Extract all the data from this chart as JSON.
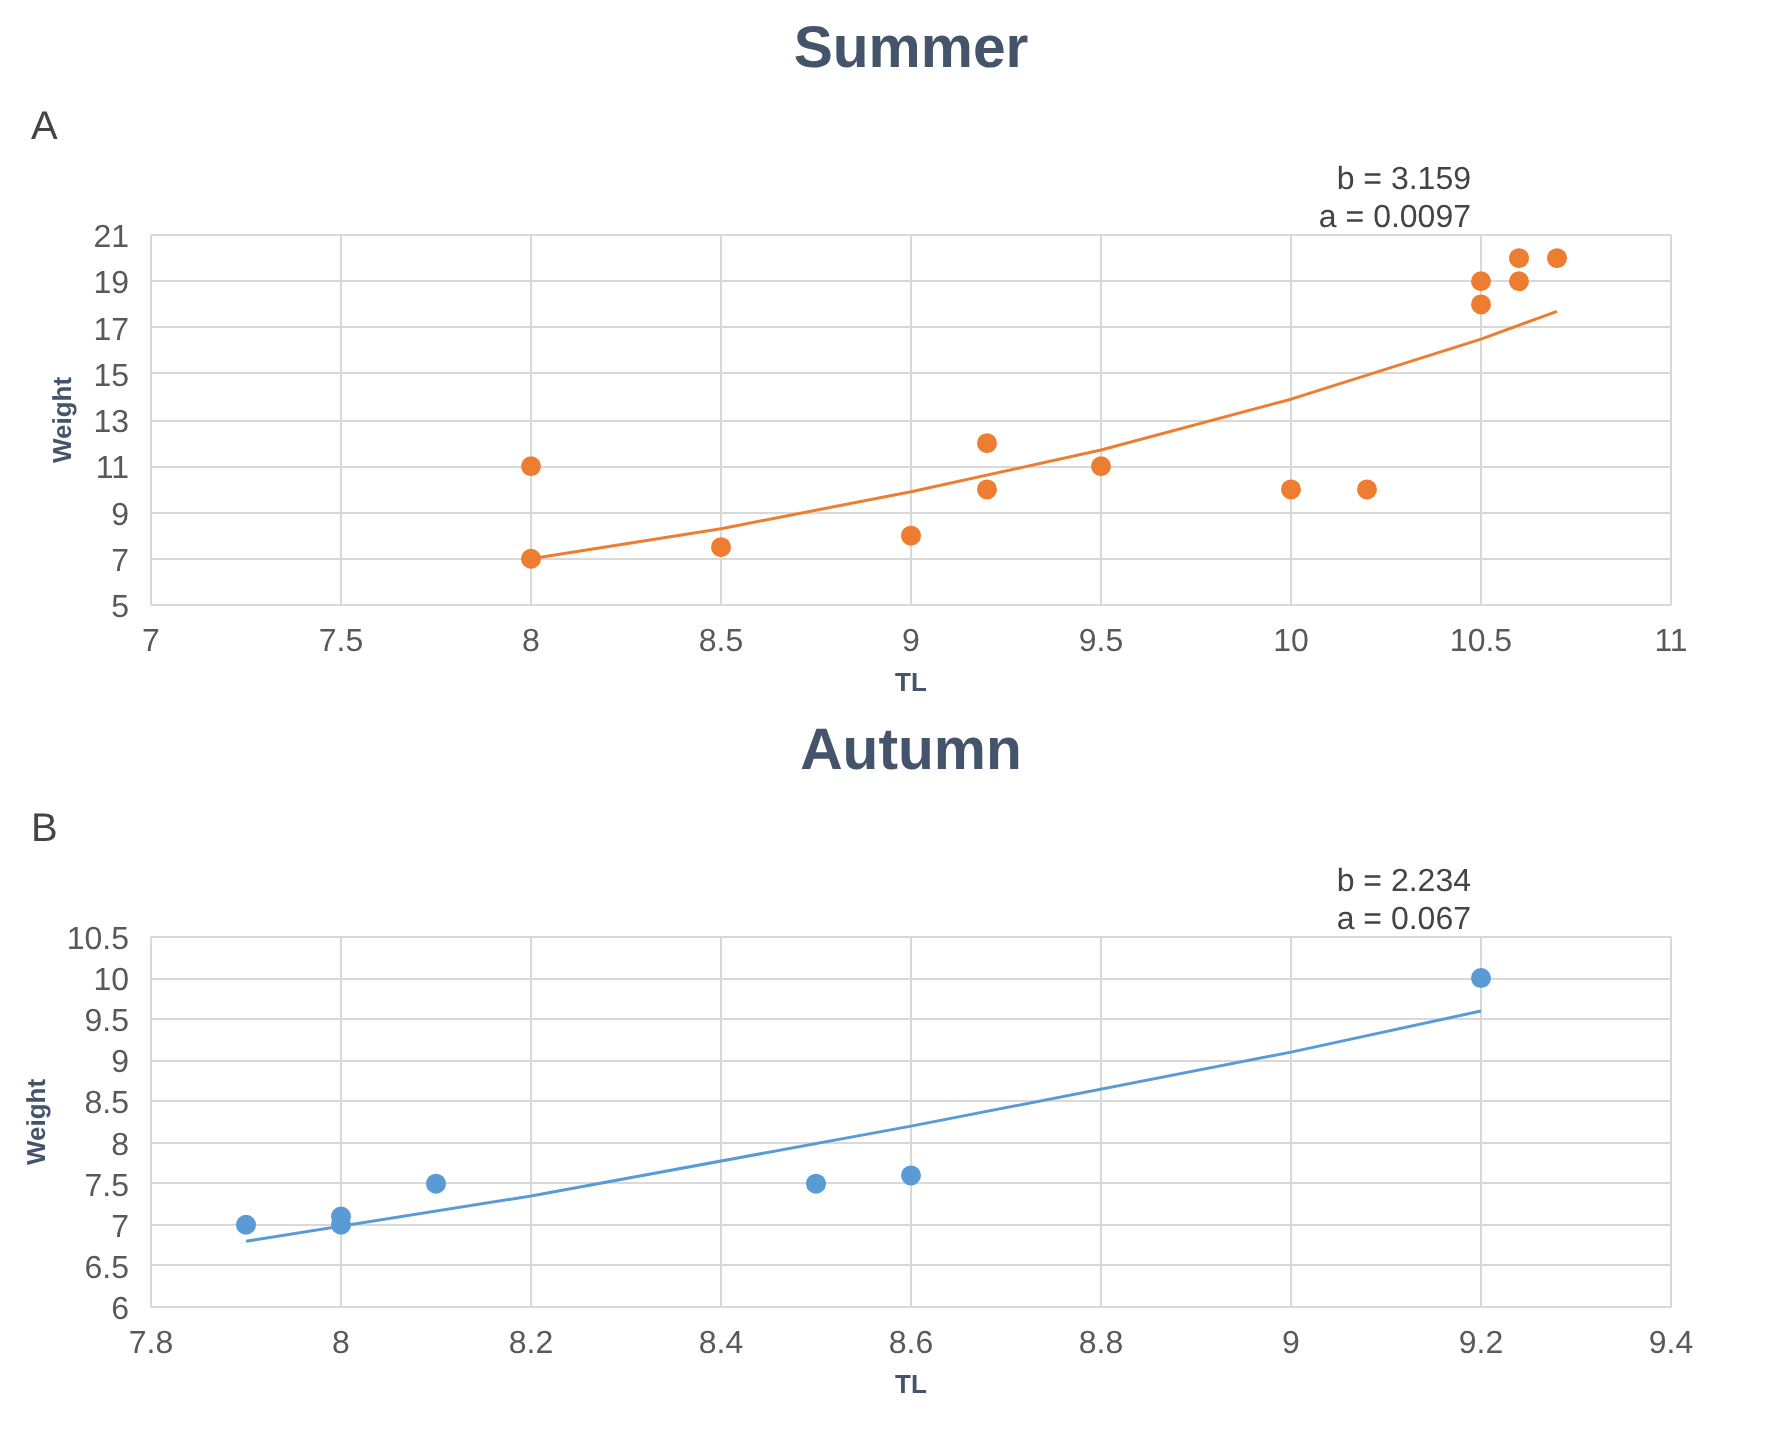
{
  "chart_data": [
    {
      "type": "scatter",
      "title": "Summer",
      "xlabel": "TL",
      "ylabel": "Weight",
      "annotations": [
        "A",
        "b = 3.159",
        "a = 0.0097"
      ],
      "grid": true,
      "xlim": [
        7,
        11
      ],
      "ylim": [
        5,
        21
      ],
      "xticks": [
        7,
        7.5,
        8,
        8.5,
        9,
        9.5,
        10,
        10.5,
        11
      ],
      "yticks": [
        5,
        7,
        9,
        11,
        13,
        15,
        17,
        19,
        21
      ],
      "series": [
        {
          "color": "#ed7d31",
          "marker": "circle",
          "x": [
            8,
            8,
            8.5,
            9,
            9.2,
            9.2,
            9.5,
            10,
            10.2,
            10.5,
            10.5,
            10.6,
            10.6,
            10.7
          ],
          "values": [
            11,
            7,
            7.5,
            8,
            12,
            10,
            11,
            10,
            10,
            19,
            18,
            20,
            19,
            20
          ]
        },
        {
          "type": "line",
          "color": "#ed7d31",
          "marker": "none",
          "x": [
            8,
            8.5,
            9,
            9.5,
            10,
            10.5,
            10.7
          ],
          "values": [
            7.0,
            8.3,
            9.9,
            11.7,
            13.9,
            16.5,
            17.7
          ]
        }
      ]
    },
    {
      "type": "scatter",
      "title": "Autumn",
      "xlabel": "TL",
      "ylabel": "Weight",
      "annotations": [
        "B",
        "b = 2.234",
        "a = 0.067"
      ],
      "grid": true,
      "xlim": [
        7.8,
        9.4
      ],
      "ylim": [
        6,
        10.5
      ],
      "xticks": [
        7.8,
        8,
        8.2,
        8.4,
        8.6,
        8.8,
        9,
        9.2,
        9.4
      ],
      "yticks": [
        6,
        6.5,
        7,
        7.5,
        8,
        8.5,
        9,
        9.5,
        10,
        10.5
      ],
      "series": [
        {
          "color": "#5b9bd5",
          "marker": "circle",
          "x": [
            7.9,
            8,
            8,
            8.1,
            8.5,
            8.6,
            9.2
          ],
          "values": [
            7,
            7.1,
            7,
            7.5,
            7.5,
            7.6,
            10
          ]
        },
        {
          "type": "line",
          "color": "#5b9bd5",
          "marker": "none",
          "x": [
            7.9,
            8.2,
            8.6,
            9.0,
            9.2
          ],
          "values": [
            6.8,
            7.35,
            8.2,
            9.1,
            9.6
          ]
        }
      ]
    }
  ]
}
